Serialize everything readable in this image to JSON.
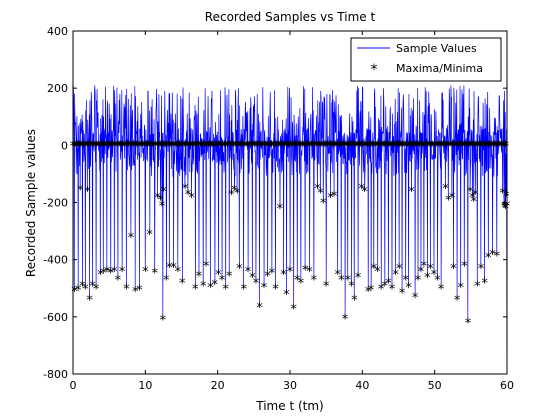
{
  "chart_data": {
    "type": "line",
    "title": "Recorded Samples vs Time t",
    "xlabel": "Time t (tm)",
    "ylabel": "Recorded Sample values",
    "xlim": [
      0,
      60
    ],
    "ylim": [
      -800,
      400
    ],
    "x_ticks": [
      "0",
      "10",
      "20",
      "30",
      "40",
      "50",
      "60"
    ],
    "y_ticks": [
      "400",
      "200",
      "0",
      "-200",
      "-400",
      "-600",
      "-800"
    ],
    "grid": false,
    "legend_position": "top-right",
    "colors": {
      "sample": "#0000ff",
      "extrema": "#ff0000"
    },
    "series": [
      {
        "name": "Sample Values",
        "kind": "line",
        "color": "#0000ff"
      },
      {
        "name": "Maxima/Minima",
        "kind": "marker",
        "marker": "*",
        "color": "#ff0000"
      }
    ],
    "extrema_points": [
      [
        0.2,
        -510
      ],
      [
        0.7,
        -505
      ],
      [
        1.0,
        -155
      ],
      [
        1.3,
        -490
      ],
      [
        1.7,
        -500
      ],
      [
        2.0,
        -160
      ],
      [
        2.3,
        -540
      ],
      [
        2.7,
        -490
      ],
      [
        3.2,
        -500
      ],
      [
        3.8,
        -450
      ],
      [
        4.2,
        -445
      ],
      [
        4.7,
        -440
      ],
      [
        5.2,
        -445
      ],
      [
        5.7,
        -440
      ],
      [
        6.2,
        -470
      ],
      [
        6.8,
        -440
      ],
      [
        7.4,
        -500
      ],
      [
        8.0,
        -320
      ],
      [
        8.6,
        -510
      ],
      [
        9.2,
        -505
      ],
      [
        10.0,
        -440
      ],
      [
        10.6,
        -310
      ],
      [
        11.3,
        -445
      ],
      [
        11.7,
        -180
      ],
      [
        12.1,
        -190
      ],
      [
        12.3,
        -210
      ],
      [
        12.4,
        -610
      ],
      [
        12.5,
        -160
      ],
      [
        12.9,
        -470
      ],
      [
        13.3,
        -425
      ],
      [
        13.9,
        -425
      ],
      [
        14.5,
        -440
      ],
      [
        15.1,
        -480
      ],
      [
        15.5,
        -150
      ],
      [
        15.9,
        -170
      ],
      [
        16.4,
        -180
      ],
      [
        16.9,
        -500
      ],
      [
        17.4,
        -455
      ],
      [
        18.0,
        -490
      ],
      [
        18.4,
        -420
      ],
      [
        19.0,
        -495
      ],
      [
        19.6,
        -485
      ],
      [
        20.1,
        -450
      ],
      [
        20.6,
        -470
      ],
      [
        21.1,
        -500
      ],
      [
        21.6,
        -455
      ],
      [
        21.9,
        -170
      ],
      [
        22.3,
        -155
      ],
      [
        22.7,
        -165
      ],
      [
        23.0,
        -430
      ],
      [
        23.6,
        -500
      ],
      [
        24.2,
        -440
      ],
      [
        24.8,
        -460
      ],
      [
        25.3,
        -480
      ],
      [
        25.8,
        -565
      ],
      [
        26.4,
        -495
      ],
      [
        26.9,
        -455
      ],
      [
        27.5,
        -445
      ],
      [
        28.0,
        -500
      ],
      [
        28.6,
        -220
      ],
      [
        29.1,
        -450
      ],
      [
        29.5,
        -520
      ],
      [
        30.0,
        -440
      ],
      [
        30.5,
        -570
      ],
      [
        31.0,
        -470
      ],
      [
        31.5,
        -480
      ],
      [
        32.1,
        -435
      ],
      [
        32.7,
        -440
      ],
      [
        33.3,
        -470
      ],
      [
        33.8,
        -150
      ],
      [
        34.2,
        -165
      ],
      [
        34.6,
        -200
      ],
      [
        35.0,
        -490
      ],
      [
        35.6,
        -180
      ],
      [
        36.1,
        -175
      ],
      [
        36.6,
        -450
      ],
      [
        37.1,
        -470
      ],
      [
        37.6,
        -605
      ],
      [
        38.0,
        -470
      ],
      [
        38.5,
        -490
      ],
      [
        38.9,
        -540
      ],
      [
        39.4,
        -460
      ],
      [
        39.9,
        -150
      ],
      [
        40.3,
        -160
      ],
      [
        40.8,
        -510
      ],
      [
        41.2,
        -505
      ],
      [
        41.6,
        -430
      ],
      [
        42.1,
        -440
      ],
      [
        42.6,
        -500
      ],
      [
        43.1,
        -490
      ],
      [
        43.6,
        -480
      ],
      [
        44.1,
        -500
      ],
      [
        44.6,
        -450
      ],
      [
        45.1,
        -430
      ],
      [
        45.5,
        -515
      ],
      [
        46.0,
        -470
      ],
      [
        46.4,
        -495
      ],
      [
        46.8,
        -160
      ],
      [
        47.3,
        -530
      ],
      [
        47.7,
        -470
      ],
      [
        48.1,
        -440
      ],
      [
        48.5,
        -420
      ],
      [
        49.0,
        -460
      ],
      [
        49.4,
        -430
      ],
      [
        49.9,
        -450
      ],
      [
        50.4,
        -470
      ],
      [
        50.9,
        -500
      ],
      [
        51.5,
        -150
      ],
      [
        51.9,
        -190
      ],
      [
        52.4,
        -180
      ],
      [
        52.6,
        -430
      ],
      [
        53.1,
        -540
      ],
      [
        53.6,
        -495
      ],
      [
        54.1,
        -420
      ],
      [
        54.6,
        -620
      ],
      [
        54.9,
        -160
      ],
      [
        55.2,
        -180
      ],
      [
        55.4,
        -195
      ],
      [
        55.6,
        -170
      ],
      [
        55.9,
        -490
      ],
      [
        56.4,
        -430
      ],
      [
        56.9,
        -480
      ],
      [
        57.4,
        -390
      ],
      [
        58.0,
        -380
      ],
      [
        58.6,
        -385
      ],
      [
        59.4,
        -165
      ],
      [
        59.6,
        -210
      ],
      [
        59.7,
        -215
      ],
      [
        59.8,
        -220
      ],
      [
        59.9,
        -175
      ],
      [
        60.0,
        -210
      ]
    ]
  }
}
